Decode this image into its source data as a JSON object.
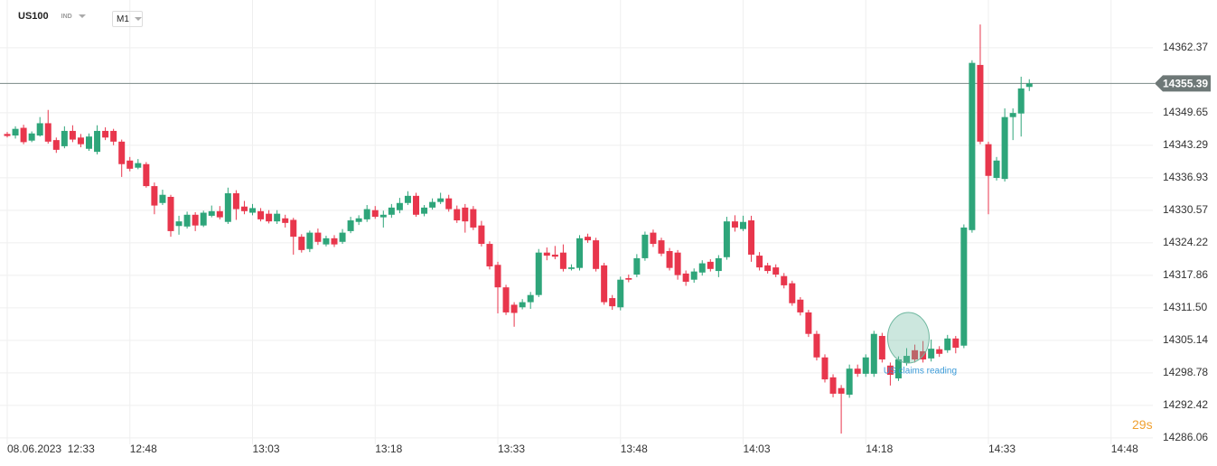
{
  "header": {
    "symbol": "US100",
    "market": "IND",
    "timeframe": "M1"
  },
  "countdown": "29s",
  "chart_data": {
    "type": "candlestick",
    "x": [
      "12:33",
      "12:34",
      "12:35",
      "12:36",
      "12:37",
      "12:38",
      "12:39",
      "12:40",
      "12:41",
      "12:42",
      "12:43",
      "12:44",
      "12:45",
      "12:46",
      "12:47",
      "12:48",
      "12:49",
      "12:50",
      "12:51",
      "12:52",
      "12:53",
      "12:54",
      "12:55",
      "12:56",
      "12:57",
      "12:58",
      "12:59",
      "13:00",
      "13:01",
      "13:02",
      "13:03",
      "13:04",
      "13:05",
      "13:06",
      "13:07",
      "13:08",
      "13:09",
      "13:10",
      "13:11",
      "13:12",
      "13:13",
      "13:14",
      "13:15",
      "13:16",
      "13:17",
      "13:18",
      "13:19",
      "13:20",
      "13:21",
      "13:22",
      "13:23",
      "13:24",
      "13:25",
      "13:26",
      "13:27",
      "13:28",
      "13:29",
      "13:30",
      "13:31",
      "13:32",
      "13:33",
      "13:34",
      "13:35",
      "13:36",
      "13:37",
      "13:38",
      "13:39",
      "13:40",
      "13:41",
      "13:42",
      "13:43",
      "13:44",
      "13:45",
      "13:46",
      "13:47",
      "13:48",
      "13:49",
      "13:50",
      "13:51",
      "13:52",
      "13:53",
      "13:54",
      "13:55",
      "13:56",
      "13:57",
      "13:58",
      "13:59",
      "14:00",
      "14:01",
      "14:02",
      "14:03",
      "14:04",
      "14:05",
      "14:06",
      "14:07",
      "14:08",
      "14:09",
      "14:10",
      "14:11",
      "14:12",
      "14:13",
      "14:14",
      "14:15",
      "14:16",
      "14:17",
      "14:18",
      "14:19",
      "14:20",
      "14:21",
      "14:22",
      "14:23",
      "14:24",
      "14:25",
      "14:26",
      "14:27",
      "14:28",
      "14:29",
      "14:30",
      "14:31",
      "14:32",
      "14:33",
      "14:34",
      "14:35",
      "14:36",
      "14:37",
      "14:38"
    ],
    "open": [
      14345.5,
      14345.2,
      14346.7,
      14344.2,
      14345.2,
      14347.6,
      14344.3,
      14343.1,
      14346.1,
      14344.8,
      14342.6,
      14342.0,
      14346.1,
      14346.1,
      14344.0,
      14340.3,
      14338.9,
      14339.6,
      14335.3,
      14332.0,
      14333.2,
      14327.5,
      14327.4,
      14329.7,
      14327.6,
      14329.5,
      14330.4,
      14328.3,
      14333.9,
      14331.3,
      14330.1,
      14330.4,
      14329.9,
      14328.4,
      14329.0,
      14328.7,
      14325.4,
      14323.0,
      14326.2,
      14323.9,
      14325.1,
      14324.4,
      14326.5,
      14328.3,
      14328.8,
      14330.6,
      14329.2,
      14329.7,
      14330.6,
      14332.0,
      14333.4,
      14329.9,
      14331.1,
      14332.2,
      14332.9,
      14330.8,
      14331.1,
      14330.8,
      14327.6,
      14324.0,
      14319.9,
      14315.5,
      14312.1,
      14311.6,
      14312.6,
      14314.0,
      14322.3,
      14321.9,
      14322.3,
      14319.1,
      14319.3,
      14325.4,
      14324.7,
      14319.8,
      14313.4,
      14311.6,
      14317.3,
      14318.0,
      14321.2,
      14326.2,
      14324.7,
      14322.6,
      14322.3,
      14318.2,
      14317.0,
      14318.4,
      14320.5,
      14318.7,
      14321.4,
      14328.4,
      14326.9,
      14328.6,
      14321.7,
      14319.8,
      14319.4,
      14317.7,
      14316.3,
      14313.1,
      14310.6,
      14306.4,
      14301.8,
      14297.9,
      14295.8,
      14294.5,
      14299.6,
      14298.6,
      14298.6,
      14306.0,
      14300.2,
      14297.7,
      14300.7,
      14303.2,
      14303.0,
      14301.6,
      14303.4,
      14303.2,
      14305.5,
      14304.1,
      14326.7,
      14359.0,
      14343.5,
      14336.9,
      14336.7,
      14348.8,
      14349.5,
      14354.7
    ],
    "high": [
      14345.9,
      14347,
      14347.3,
      14346,
      14348.8,
      14350.2,
      14344.8,
      14347,
      14347.2,
      14345.5,
      14345.6,
      14347.2,
      14346.8,
      14346.5,
      14344.4,
      14341,
      14340.6,
      14340,
      14336,
      14334.6,
      14333.6,
      14329.5,
      14330.3,
      14330.2,
      14330.5,
      14331.5,
      14331.4,
      14335,
      14334.5,
      14332.4,
      14331.8,
      14331,
      14330.6,
      14330.6,
      14329.7,
      14329.1,
      14325.9,
      14326.6,
      14327,
      14325.6,
      14325.7,
      14326.9,
      14329.3,
      14329.6,
      14331.6,
      14331.4,
      14330.5,
      14331.8,
      14333,
      14334.3,
      14334,
      14331.6,
      14332.9,
      14334,
      14333.6,
      14331.5,
      14331.8,
      14331.4,
      14328.5,
      14324.5,
      14320.5,
      14316,
      14312.6,
      14313.2,
      14314.6,
      14323,
      14323.3,
      14323.6,
      14323.9,
      14320,
      14325.7,
      14326,
      14325.2,
      14320.3,
      14314,
      14317.6,
      14318,
      14322,
      14326.4,
      14326.8,
      14325.2,
      14323.2,
      14322.8,
      14318.8,
      14319.2,
      14320.8,
      14321,
      14321.8,
      14329.3,
      14329.6,
      14329.5,
      14329.5,
      14322.4,
      14320.3,
      14320,
      14318.3,
      14316.8,
      14313.6,
      14311.1,
      14307,
      14302.4,
      14298.5,
      14296.4,
      14300.4,
      14300.4,
      14302.4,
      14307,
      14306.6,
      14300.8,
      14302,
      14303.6,
      14304.3,
      14305,
      14305.3,
      14304,
      14306.2,
      14306,
      14327.8,
      14359.9,
      14366.9,
      14344,
      14341,
      14350.5,
      14350.5,
      14356.7,
      14356.2
    ],
    "low": [
      14344.8,
      14344.6,
      14343.5,
      14343.9,
      14345,
      14343.6,
      14341.8,
      14342.7,
      14343.9,
      14342.9,
      14342.2,
      14341.5,
      14344.3,
      14343.3,
      14337.1,
      14338.2,
      14338.6,
      14335,
      14329.8,
      14331.6,
      14325.4,
      14325.8,
      14327,
      14326.5,
      14327.3,
      14329.2,
      14328.8,
      14327.9,
      14328.7,
      14329.8,
      14329.6,
      14328.4,
      14328,
      14327.9,
      14327.2,
      14321.9,
      14322.3,
      14322.4,
      14323.8,
      14323.5,
      14323.4,
      14324,
      14326.1,
      14327.7,
      14328.3,
      14328.9,
      14327.2,
      14329.1,
      14330,
      14331.6,
      14329.3,
      14329.4,
      14330.7,
      14331.8,
      14330.3,
      14328.1,
      14326.2,
      14326.7,
      14323.5,
      14319,
      14310.4,
      14310.1,
      14307.8,
      14311.2,
      14311.3,
      14313.6,
      14320.8,
      14321,
      14318.6,
      14318.8,
      14318.8,
      14324.2,
      14318.6,
      14312.1,
      14311.1,
      14311,
      14316.5,
      14317.5,
      14320.7,
      14323.4,
      14321.6,
      14318.8,
      14317,
      14315.8,
      14316.4,
      14317.8,
      14318.6,
      14317.5,
      14320.9,
      14326.4,
      14326.5,
      14320.5,
      14318.8,
      14318.2,
      14317.5,
      14315.3,
      14311.9,
      14310,
      14305.8,
      14301.2,
      14296.9,
      14294,
      14286.9,
      14293.9,
      14298,
      14298,
      14298,
      14300.8,
      14296.3,
      14297.2,
      14300.2,
      14300.8,
      14300.8,
      14301,
      14301.9,
      14302.7,
      14302.6,
      14303.6,
      14326.2,
      14343.5,
      14329.8,
      14336.4,
      14336.2,
      14344.3,
      14345,
      14353.9
    ],
    "close": [
      14345.1,
      14346.5,
      14343.9,
      14345.6,
      14347.6,
      14344.0,
      14342.4,
      14346.1,
      14344.4,
      14343.5,
      14345.0,
      14346.1,
      14344.8,
      14344.0,
      14339.6,
      14338.7,
      14339.8,
      14335.3,
      14331.5,
      14333.6,
      14326.5,
      14328.4,
      14329.7,
      14327.6,
      14330.1,
      14330.4,
      14329.2,
      14333.9,
      14330.8,
      14330.4,
      14331.0,
      14328.8,
      14328.4,
      14329.9,
      14328.1,
      14325.4,
      14322.8,
      14326.2,
      14324.4,
      14325.1,
      14323.9,
      14326.2,
      14328.6,
      14329.0,
      14330.8,
      14329.3,
      14329.7,
      14331.1,
      14332.0,
      14333.4,
      14329.7,
      14331.1,
      14332.2,
      14332.9,
      14330.8,
      14328.6,
      14328.4,
      14327.2,
      14324.0,
      14319.6,
      14315.5,
      14310.6,
      14310.5,
      14312.6,
      14314.0,
      14322.3,
      14321.7,
      14321.5,
      14319.1,
      14319.4,
      14325.1,
      14324.7,
      14319.1,
      14312.6,
      14311.8,
      14317.0,
      14317.0,
      14321.2,
      14325.8,
      14324.0,
      14322.1,
      14319.3,
      14317.9,
      14316.6,
      14318.6,
      14320.2,
      14319.1,
      14321.2,
      14328.4,
      14327.2,
      14328.3,
      14321.9,
      14319.4,
      14318.7,
      14318.0,
      14315.9,
      14312.4,
      14310.6,
      14306.4,
      14301.8,
      14297.5,
      14294.7,
      14294.7,
      14299.6,
      14298.6,
      14301.8,
      14306.4,
      14301.4,
      14298.4,
      14301.4,
      14302.1,
      14301.4,
      14301.4,
      14303.5,
      14302.5,
      14305.5,
      14303.7,
      14327.2,
      14359.4,
      14344.0,
      14337.3,
      14340.3,
      14348.8,
      14349.6,
      14354.4,
      14355.39
    ],
    "up_color": "#2ea57a",
    "down_color": "#e8364c",
    "ylim": [
      14284.8,
      14371.7
    ],
    "yticks": [
      14286.06,
      14292.42,
      14298.78,
      14305.14,
      {
        "value": 14311.5,
        "label": "14311.50"
      },
      14317.86,
      14324.22,
      14330.57,
      14336.93,
      14343.29,
      14349.65,
      14362.37
    ],
    "xticks": [
      {
        "value": "12:33",
        "label": "08.06.2023  12:33"
      },
      "12:48",
      "13:03",
      "13:18",
      "13:33",
      "13:48",
      "14:03",
      "14:18",
      "14:33",
      "14:48"
    ],
    "grid": true,
    "last_price": 14355.39,
    "annotation": {
      "text": "US claims reading",
      "x": "14:22"
    }
  }
}
